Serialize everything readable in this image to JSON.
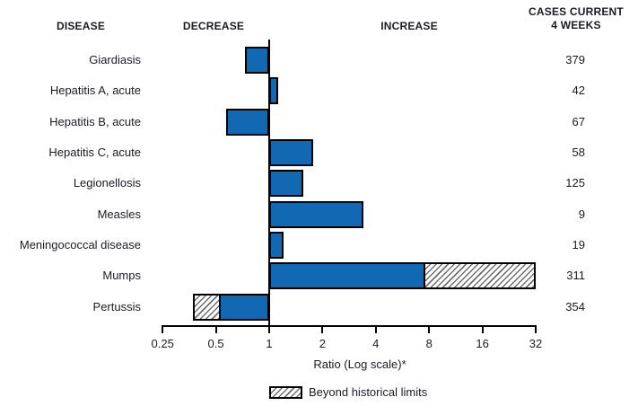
{
  "header": {
    "disease": "DISEASE",
    "decrease": "DECREASE",
    "increase": "INCREASE",
    "cases_line1": "CASES CURRENT",
    "cases_line2": "4 WEEKS"
  },
  "chart_data": {
    "type": "bar",
    "orientation": "horizontal",
    "x_scale": "log2",
    "xlabel": "Ratio (Log scale)*",
    "x_ticks": [
      "0.25",
      "0.5",
      "1",
      "2",
      "4",
      "8",
      "16",
      "32"
    ],
    "xlim": [
      0.25,
      32
    ],
    "baseline_ratio": 1,
    "legend": {
      "hatched_label": "Beyond historical limits"
    },
    "rows": [
      {
        "disease": "Giardiasis",
        "ratio": 0.73,
        "cases": "379"
      },
      {
        "disease": "Hepatitis A, acute",
        "ratio": 1.12,
        "cases": "42"
      },
      {
        "disease": "Hepatitis B, acute",
        "ratio": 0.57,
        "cases": "67"
      },
      {
        "disease": "Hepatitis C, acute",
        "ratio": 1.78,
        "cases": "58"
      },
      {
        "disease": "Legionellosis",
        "ratio": 1.56,
        "cases": "125"
      },
      {
        "disease": "Measles",
        "ratio": 3.4,
        "cases": "9"
      },
      {
        "disease": "Meningococcal disease",
        "ratio": 1.2,
        "cases": "19"
      },
      {
        "disease": "Mumps",
        "ratio": 32,
        "historical_limit": 7.6,
        "beyond_historical_limits": true,
        "cases": "311"
      },
      {
        "disease": "Pertussis",
        "ratio": 0.37,
        "historical_limit": 0.53,
        "beyond_historical_limits": true,
        "cases": "354"
      }
    ]
  },
  "colors": {
    "bar_fill": "#1169b4",
    "bar_border": "#000000",
    "hatch_line": "#6e6e6e",
    "text": "#1b1b26",
    "axis": "#000000"
  }
}
